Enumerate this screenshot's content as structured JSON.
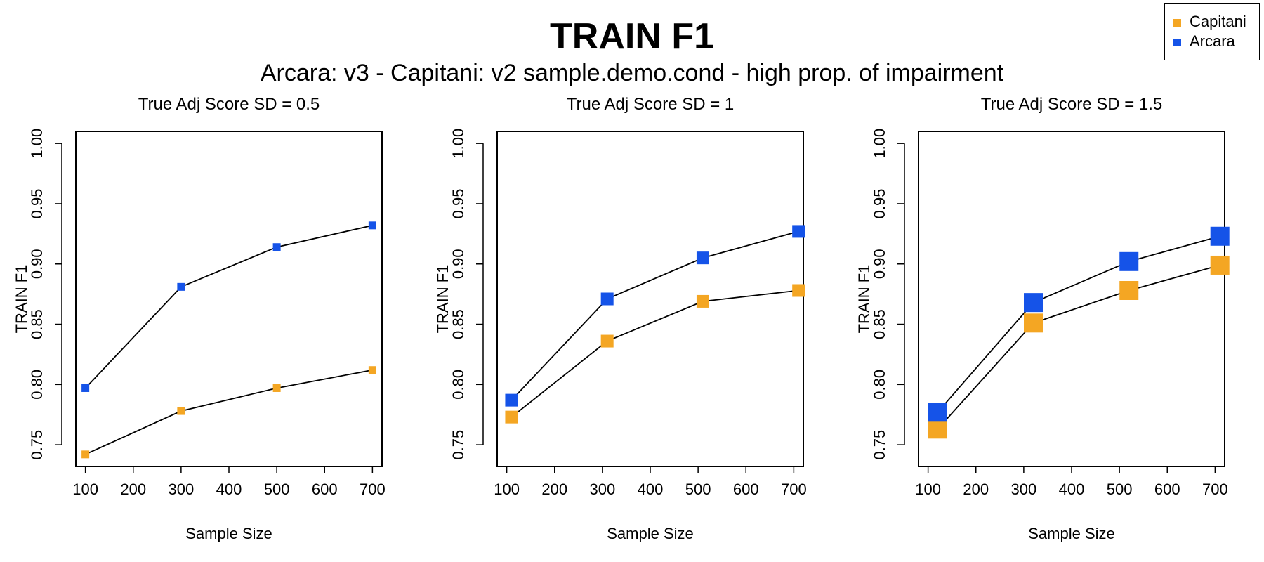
{
  "title": "TRAIN F1",
  "subtitle": "Arcara: v3 - Capitani: v2 sample.demo.cond - high prop. of impairment",
  "legend": [
    {
      "label": "Capitani",
      "color": "#f4a623"
    },
    {
      "label": "Arcara",
      "color": "#1553e8"
    }
  ],
  "chart_data": [
    {
      "type": "line",
      "title": "True Adj Score SD = 0.5",
      "xlabel": "Sample Size",
      "ylabel": "TRAIN F1",
      "xlim": [
        80,
        720
      ],
      "ylim": [
        0.732,
        1.01
      ],
      "xticks": [
        "100",
        "200",
        "300",
        "400",
        "500",
        "600",
        "700"
      ],
      "yticks": [
        "0.75",
        "0.80",
        "0.85",
        "0.90",
        "0.95",
        "1.00"
      ],
      "marker_size": "small",
      "series": [
        {
          "name": "Capitani",
          "color": "#f4a623",
          "x": [
            100,
            300,
            500,
            700
          ],
          "values": [
            0.742,
            0.778,
            0.797,
            0.812
          ]
        },
        {
          "name": "Arcara",
          "color": "#1553e8",
          "x": [
            100,
            300,
            500,
            700
          ],
          "values": [
            0.797,
            0.881,
            0.914,
            0.932
          ]
        }
      ]
    },
    {
      "type": "line",
      "title": "True Adj Score SD = 1",
      "xlabel": "Sample Size",
      "ylabel": "TRAIN F1",
      "xlim": [
        80,
        720
      ],
      "ylim": [
        0.732,
        1.01
      ],
      "xticks": [
        "100",
        "200",
        "300",
        "400",
        "500",
        "600",
        "700"
      ],
      "yticks": [
        "0.75",
        "0.80",
        "0.85",
        "0.90",
        "0.95",
        "1.00"
      ],
      "marker_size": "medium",
      "series": [
        {
          "name": "Capitani",
          "color": "#f4a623",
          "x": [
            110,
            310,
            510,
            710
          ],
          "values": [
            0.773,
            0.836,
            0.869,
            0.878
          ]
        },
        {
          "name": "Arcara",
          "color": "#1553e8",
          "x": [
            110,
            310,
            510,
            710
          ],
          "values": [
            0.787,
            0.871,
            0.905,
            0.927
          ]
        }
      ]
    },
    {
      "type": "line",
      "title": "True Adj Score SD = 1.5",
      "xlabel": "Sample Size",
      "ylabel": "TRAIN F1",
      "xlim": [
        80,
        720
      ],
      "ylim": [
        0.732,
        1.01
      ],
      "xticks": [
        "100",
        "200",
        "300",
        "400",
        "500",
        "600",
        "700"
      ],
      "yticks": [
        "0.75",
        "0.80",
        "0.85",
        "0.90",
        "0.95",
        "1.00"
      ],
      "marker_size": "large",
      "series": [
        {
          "name": "Capitani",
          "color": "#f4a623",
          "x": [
            120,
            320,
            520,
            710
          ],
          "values": [
            0.763,
            0.851,
            0.878,
            0.899
          ]
        },
        {
          "name": "Arcara",
          "color": "#1553e8",
          "x": [
            120,
            320,
            520,
            710
          ],
          "values": [
            0.777,
            0.868,
            0.902,
            0.923
          ]
        }
      ]
    }
  ]
}
